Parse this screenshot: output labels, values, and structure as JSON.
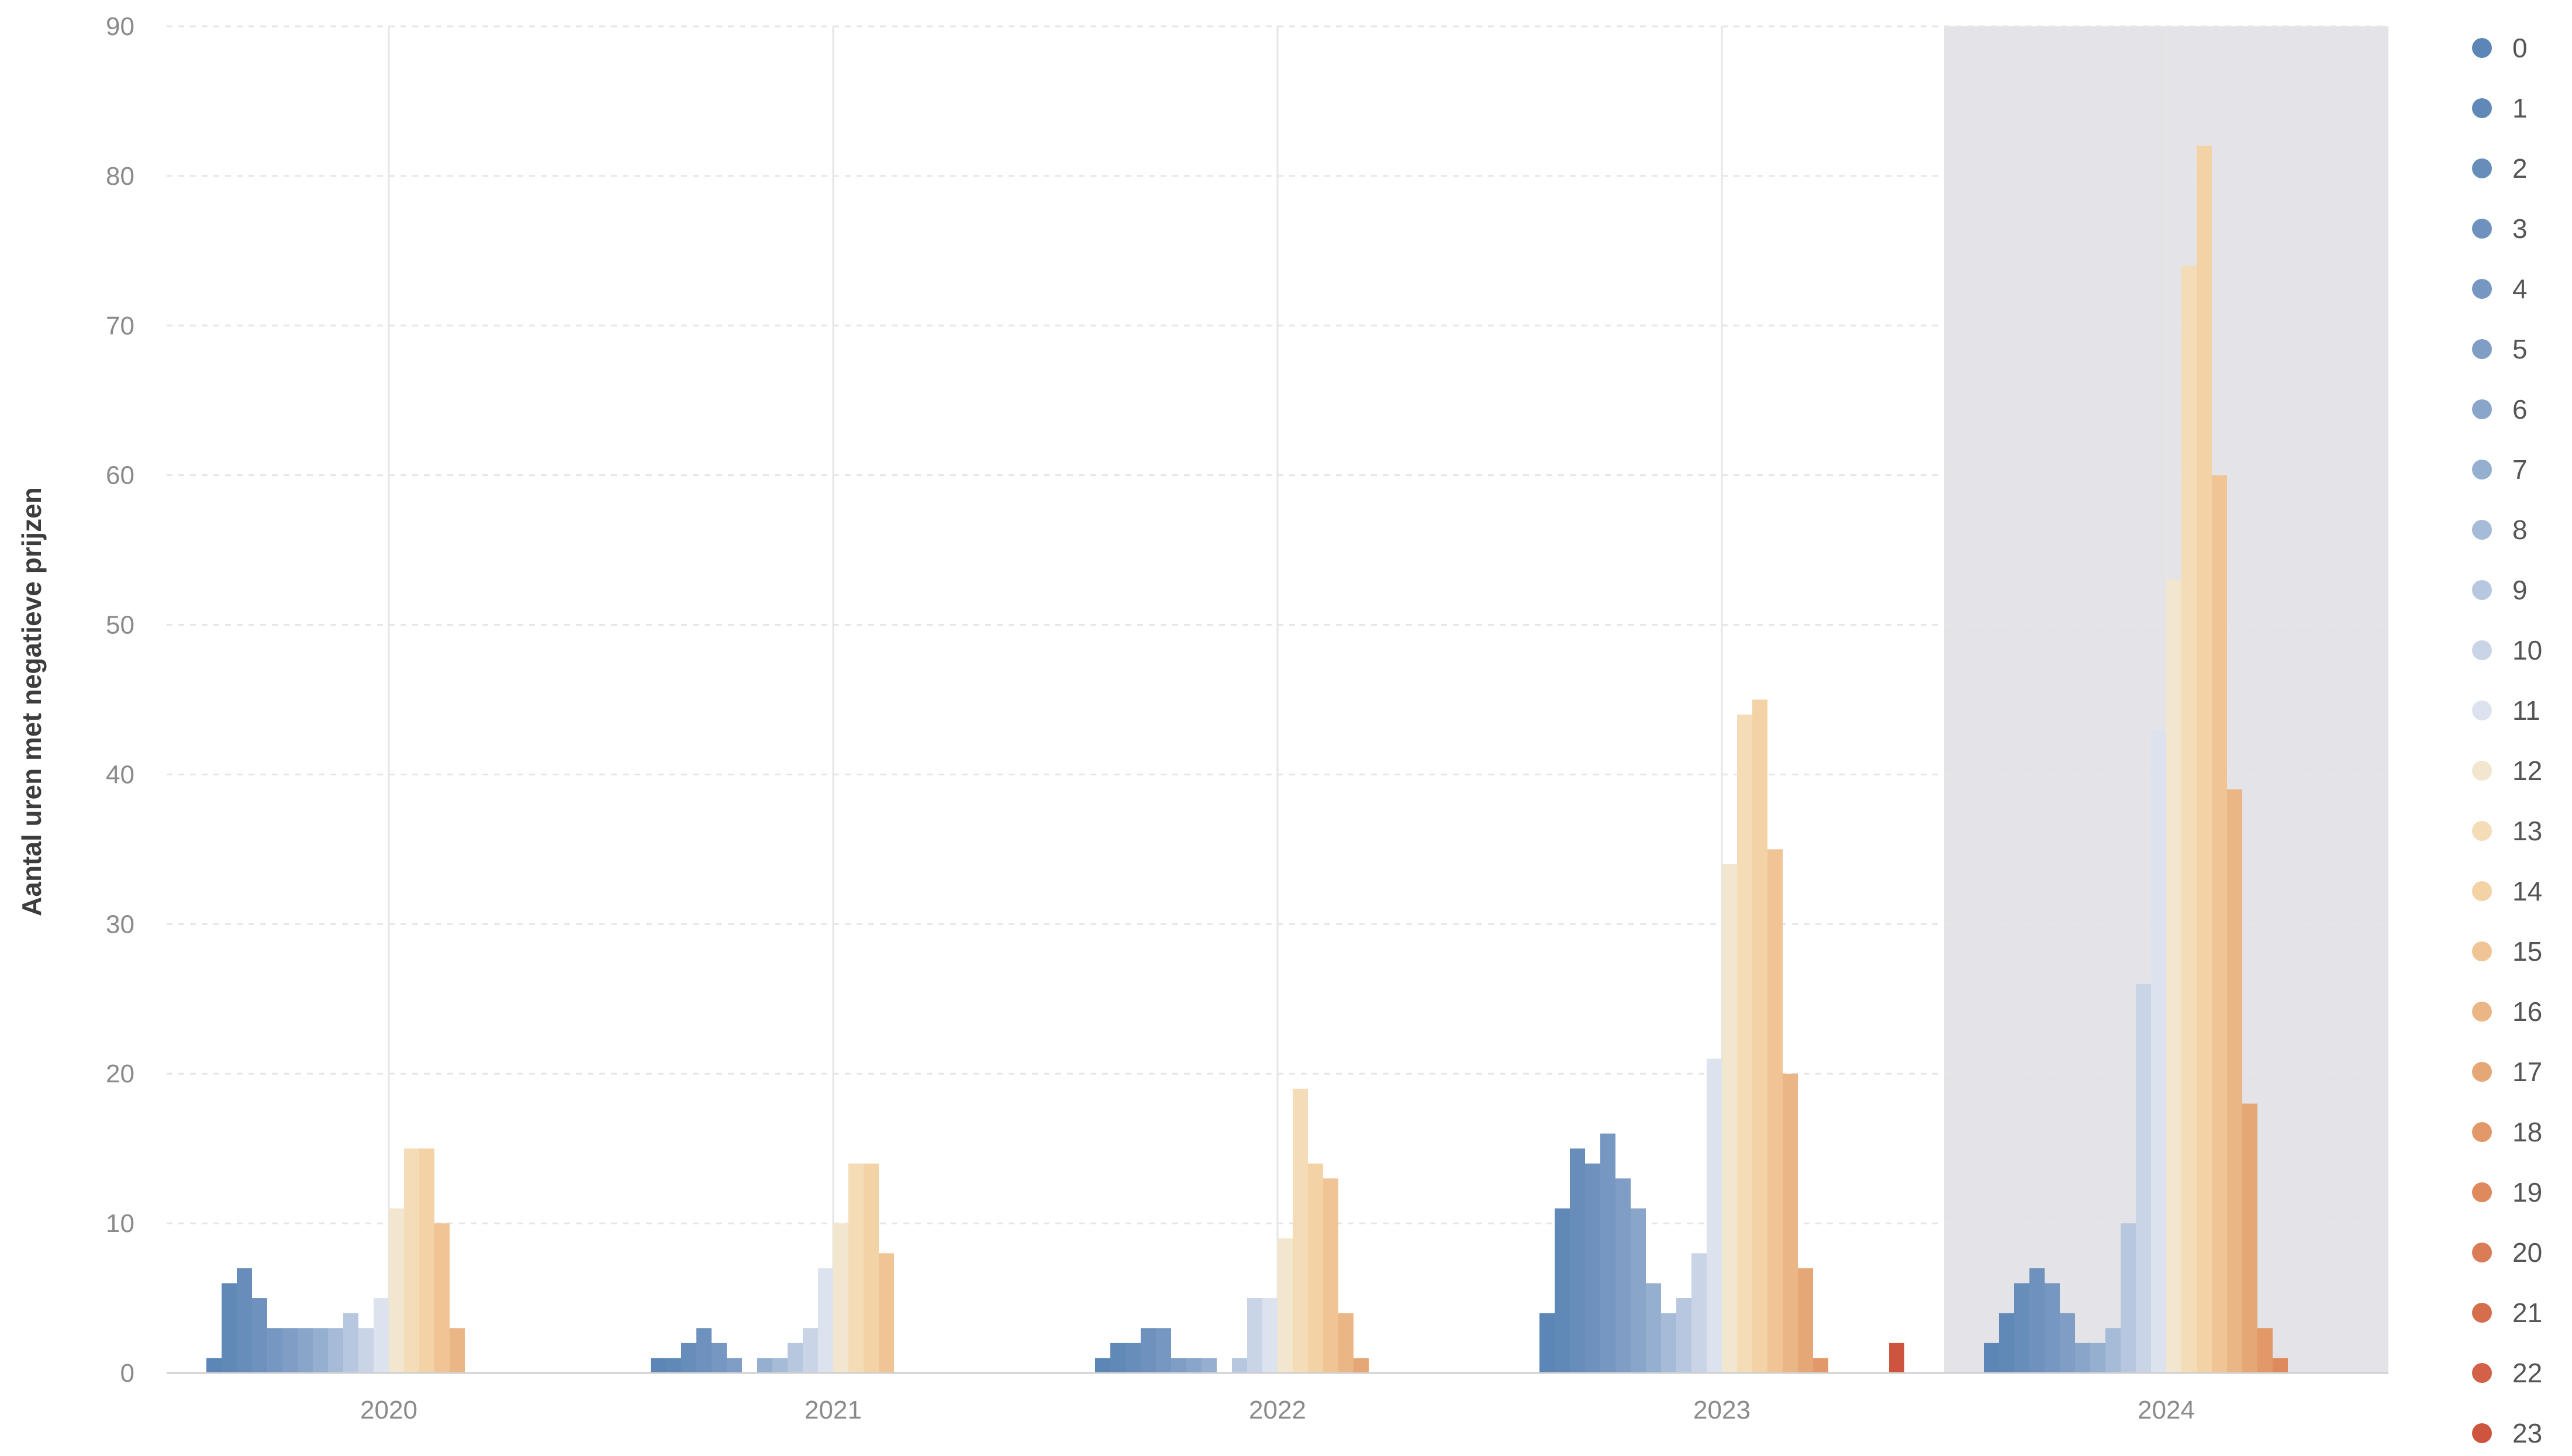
{
  "chart_data": {
    "type": "bar",
    "ylabel": "Aantal uren met negatieve prijzen",
    "xlabel": "",
    "ylim": [
      0,
      90
    ],
    "yticks": [
      0,
      10,
      20,
      30,
      40,
      50,
      60,
      70,
      80,
      90
    ],
    "categories": [
      "2020",
      "2021",
      "2022",
      "2023",
      "2024"
    ],
    "highlighted_category": "2024",
    "grid": true,
    "legend_position": "right",
    "series": [
      {
        "name": "0",
        "color": "#5b86b5",
        "values": [
          1,
          1,
          1,
          4,
          2
        ]
      },
      {
        "name": "1",
        "color": "#6189b7",
        "values": [
          6,
          1,
          2,
          11,
          4
        ]
      },
      {
        "name": "2",
        "color": "#678dba",
        "values": [
          7,
          2,
          2,
          15,
          6
        ]
      },
      {
        "name": "3",
        "color": "#6e92bd",
        "values": [
          5,
          3,
          3,
          14,
          7
        ]
      },
      {
        "name": "4",
        "color": "#7697c1",
        "values": [
          3,
          2,
          3,
          16,
          6
        ]
      },
      {
        "name": "5",
        "color": "#7f9dc5",
        "values": [
          3,
          1,
          1,
          13,
          4
        ]
      },
      {
        "name": "6",
        "color": "#89a5ca",
        "values": [
          3,
          0,
          1,
          11,
          2
        ]
      },
      {
        "name": "7",
        "color": "#95afd0",
        "values": [
          3,
          1,
          1,
          6,
          2
        ]
      },
      {
        "name": "8",
        "color": "#a6bbd7",
        "values": [
          3,
          1,
          0,
          4,
          3
        ]
      },
      {
        "name": "9",
        "color": "#b7c7df",
        "values": [
          4,
          2,
          1,
          5,
          10
        ]
      },
      {
        "name": "10",
        "color": "#c9d4e7",
        "values": [
          3,
          3,
          5,
          8,
          26
        ]
      },
      {
        "name": "11",
        "color": "#dde3ee",
        "values": [
          5,
          7,
          5,
          21,
          43
        ]
      },
      {
        "name": "12",
        "color": "#f2e6cf",
        "values": [
          11,
          10,
          9,
          34,
          53
        ]
      },
      {
        "name": "13",
        "color": "#f4dcb6",
        "values": [
          15,
          14,
          19,
          44,
          74
        ]
      },
      {
        "name": "14",
        "color": "#f3d2a6",
        "values": [
          15,
          14,
          14,
          45,
          82
        ]
      },
      {
        "name": "15",
        "color": "#f0c495",
        "values": [
          10,
          8,
          13,
          35,
          60
        ]
      },
      {
        "name": "16",
        "color": "#ebb685",
        "values": [
          3,
          0,
          4,
          20,
          39
        ]
      },
      {
        "name": "17",
        "color": "#e6a776",
        "values": [
          0,
          0,
          1,
          7,
          18
        ]
      },
      {
        "name": "18",
        "color": "#e29868",
        "values": [
          0,
          0,
          0,
          1,
          3
        ]
      },
      {
        "name": "19",
        "color": "#de8a5d",
        "values": [
          0,
          0,
          0,
          0,
          1
        ]
      },
      {
        "name": "20",
        "color": "#da7c55",
        "values": [
          0,
          0,
          0,
          0,
          0
        ]
      },
      {
        "name": "21",
        "color": "#d66e4e",
        "values": [
          0,
          0,
          0,
          0,
          0
        ]
      },
      {
        "name": "22",
        "color": "#d26147",
        "values": [
          0,
          0,
          0,
          0,
          0
        ]
      },
      {
        "name": "23",
        "color": "#cd5540",
        "values": [
          0,
          0,
          0,
          2,
          0
        ]
      }
    ]
  },
  "colors": {
    "highlight_band": "#e4e4e8",
    "grid": "#e6e6e6",
    "baseline": "#cfcfcf"
  }
}
